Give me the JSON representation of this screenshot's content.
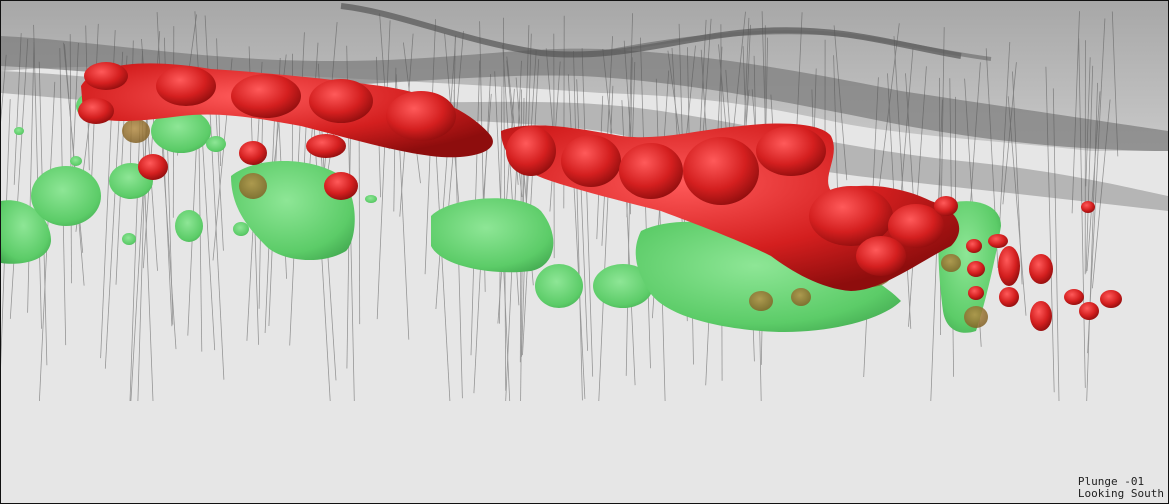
{
  "view": {
    "caption_line1": "Plunge -01",
    "caption_line2": "Looking South"
  },
  "colors": {
    "background": "#e6e6e6",
    "surface": "#8a8a8a",
    "red_body": "#d42424",
    "green_body": "#5cd06a",
    "drillhole": "#555555"
  }
}
